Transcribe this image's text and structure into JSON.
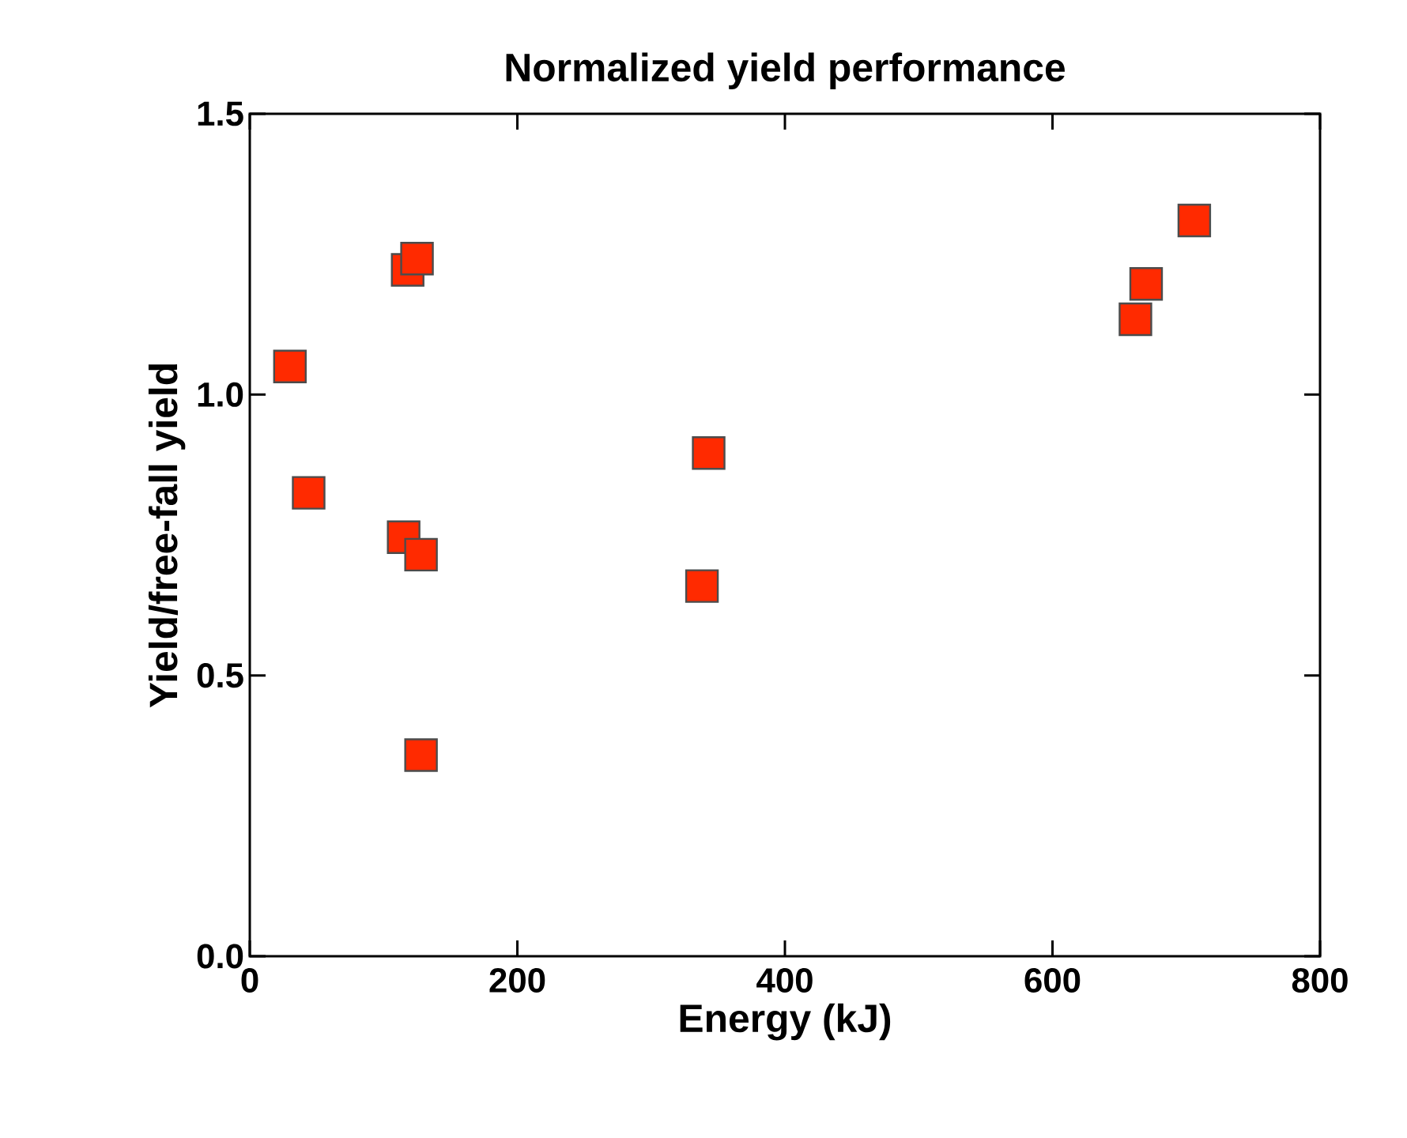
{
  "chart_data": {
    "type": "scatter",
    "title": "Normalized yield performance",
    "xlabel": "Energy (kJ)",
    "ylabel": "Yield/free-fall yield",
    "x": [
      30,
      44,
      118,
      125,
      115,
      128,
      128,
      343,
      338,
      662,
      670,
      706
    ],
    "values": [
      1.05,
      0.825,
      1.222,
      1.242,
      0.746,
      0.715,
      0.358,
      0.896,
      0.659,
      1.134,
      1.197,
      1.31
    ],
    "color": "#ff2a00",
    "marker": "square",
    "grid": false,
    "xlim": [
      0,
      800
    ],
    "ylim": [
      0,
      1.5
    ],
    "xticks": [
      0,
      200,
      400,
      600,
      800
    ],
    "yticks": [
      {
        "value": 0,
        "label": "0.0"
      },
      {
        "value": 0.5,
        "label": "0.5"
      },
      {
        "value": 1,
        "label": "1.0"
      },
      {
        "value": 1.5,
        "label": "1.5"
      }
    ]
  }
}
